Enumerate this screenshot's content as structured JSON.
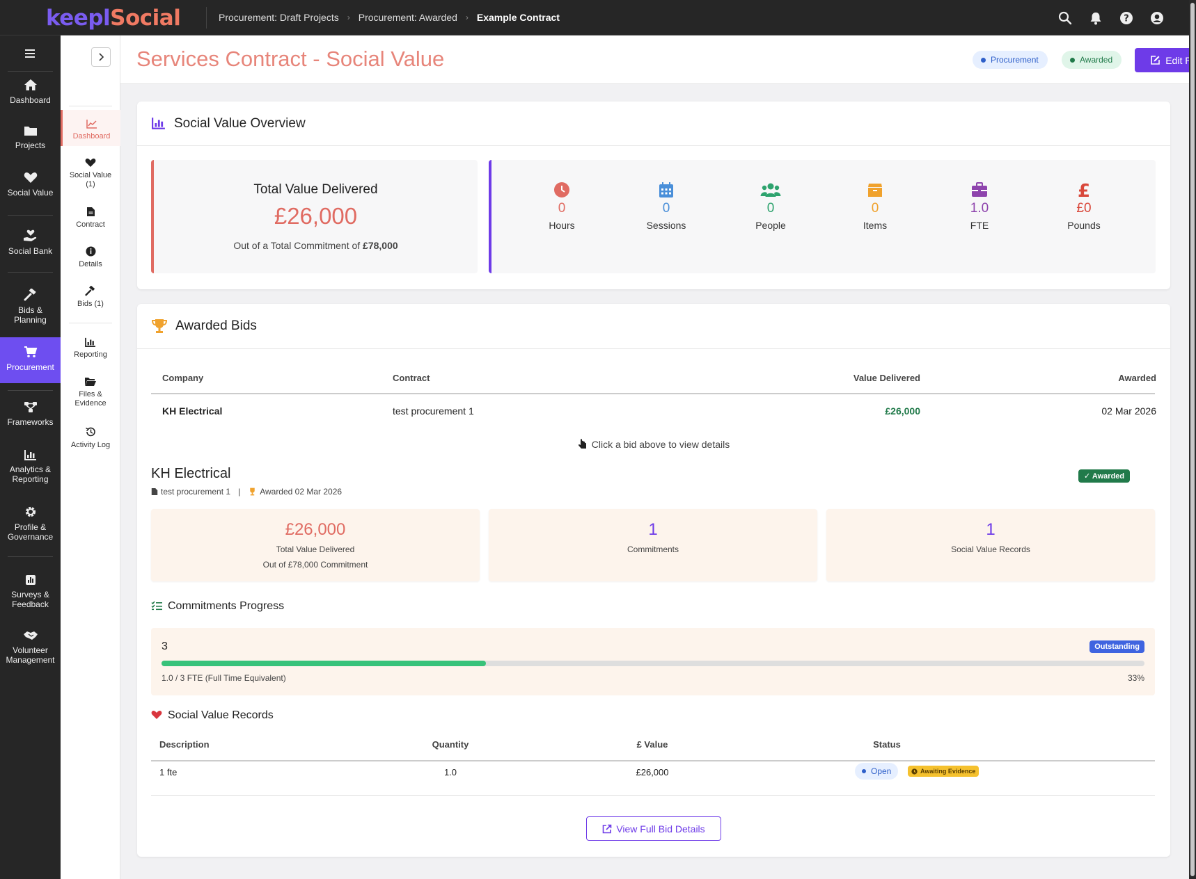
{
  "app": {
    "logo_part1": "keepl",
    "logo_part2": "Social"
  },
  "breadcrumbs": [
    "Procurement: Draft Projects",
    "Procurement: Awarded",
    "Example Contract"
  ],
  "nav": {
    "items": [
      {
        "label": "Dashboard",
        "icon": "home-icon"
      },
      {
        "label": "Projects",
        "icon": "folder-icon"
      },
      {
        "label": "Social Value",
        "icon": "heart-icon"
      },
      {
        "label": "Social Bank",
        "icon": "hand-heart-icon"
      },
      {
        "label": "Bids &",
        "label2": "Planning",
        "icon": "gavel-icon"
      },
      {
        "label": "Procurement",
        "icon": "cart-icon"
      },
      {
        "label": "Frameworks",
        "icon": "network-icon"
      },
      {
        "label": "Analytics &",
        "label2": "Reporting",
        "icon": "chart-icon"
      },
      {
        "label": "Profile &",
        "label2": "Governance",
        "icon": "gear-icon"
      },
      {
        "label": "Surveys &",
        "label2": "Feedback",
        "icon": "poll-icon"
      },
      {
        "label": "Volunteer",
        "label2": "Management",
        "icon": "handshake-icon"
      }
    ]
  },
  "subnav": {
    "items": [
      {
        "label": "Dashboard",
        "icon": "line-chart-icon"
      },
      {
        "label": "Social Value",
        "label2": "(1)",
        "icon": "heart-icon"
      },
      {
        "label": "Contract",
        "icon": "file-icon"
      },
      {
        "label": "Details",
        "icon": "info-icon"
      },
      {
        "label": "Bids (1)",
        "icon": "gavel-icon"
      },
      {
        "label": "Reporting",
        "icon": "bar-chart-icon"
      },
      {
        "label": "Files &",
        "label2": "Evidence",
        "icon": "folder-open-icon"
      },
      {
        "label": "Activity Log",
        "icon": "history-icon"
      }
    ]
  },
  "header": {
    "title": "Services Contract - Social Value",
    "badge1": "Procurement",
    "badge2": "Awarded",
    "edit_label": "Edit Project"
  },
  "overview": {
    "title": "Social Value Overview",
    "total_label": "Total Value Delivered",
    "total_value": "£26,000",
    "commitment_prefix": "Out of a Total Commitment of ",
    "commitment_value": "£78,000",
    "metrics": [
      {
        "value": "0",
        "label": "Hours",
        "color": "#e06b62",
        "icon": "clock-icon"
      },
      {
        "value": "0",
        "label": "Sessions",
        "color": "#4a8fd9",
        "icon": "calendar-icon"
      },
      {
        "value": "0",
        "label": "People",
        "color": "#2ea36e",
        "icon": "users-icon"
      },
      {
        "value": "0",
        "label": "Items",
        "color": "#f0a22d",
        "icon": "box-icon"
      },
      {
        "value": "1.0",
        "label": "FTE",
        "color": "#8e44ad",
        "icon": "briefcase-icon"
      },
      {
        "value": "£0",
        "label": "Pounds",
        "color": "#d9483b",
        "icon": "pound-icon"
      }
    ]
  },
  "bids": {
    "title": "Awarded Bids",
    "columns": [
      "Company",
      "Contract",
      "Value Delivered",
      "Awarded"
    ],
    "rows": [
      {
        "company": "KH Electrical",
        "contract": "test procurement 1",
        "value": "£26,000",
        "awarded": "02 Mar 2026"
      }
    ],
    "hint": "Click a bid above to view details"
  },
  "detail": {
    "company": "KH Electrical",
    "badge": "Awarded",
    "contract": "test procurement 1",
    "awarded": "Awarded 02 Mar 2026",
    "sep": "|",
    "stats": [
      {
        "value": "£26,000",
        "label": "Total Value Delivered",
        "label2": "Out of £78,000 Commitment",
        "color": "#e06b62"
      },
      {
        "value": "1",
        "label": "Commitments",
        "color": "#6e3be8"
      },
      {
        "value": "1",
        "label": "Social Value Records",
        "color": "#6e3be8"
      }
    ],
    "progress_title": "Commitments Progress",
    "progress": {
      "name": "3",
      "status": "Outstanding",
      "fraction": 0.33,
      "caption": "1.0 / 3 FTE (Full Time Equivalent)",
      "percent": "33%"
    },
    "records_title": "Social Value Records",
    "records_columns": [
      "Description",
      "Quantity",
      "£ Value",
      "Status"
    ],
    "records": [
      {
        "description": "1 fte",
        "quantity": "1.0",
        "value": "£26,000",
        "status1": "Open",
        "status2": "Awaiting Evidence"
      }
    ],
    "view_label": "View Full Bid Details"
  }
}
